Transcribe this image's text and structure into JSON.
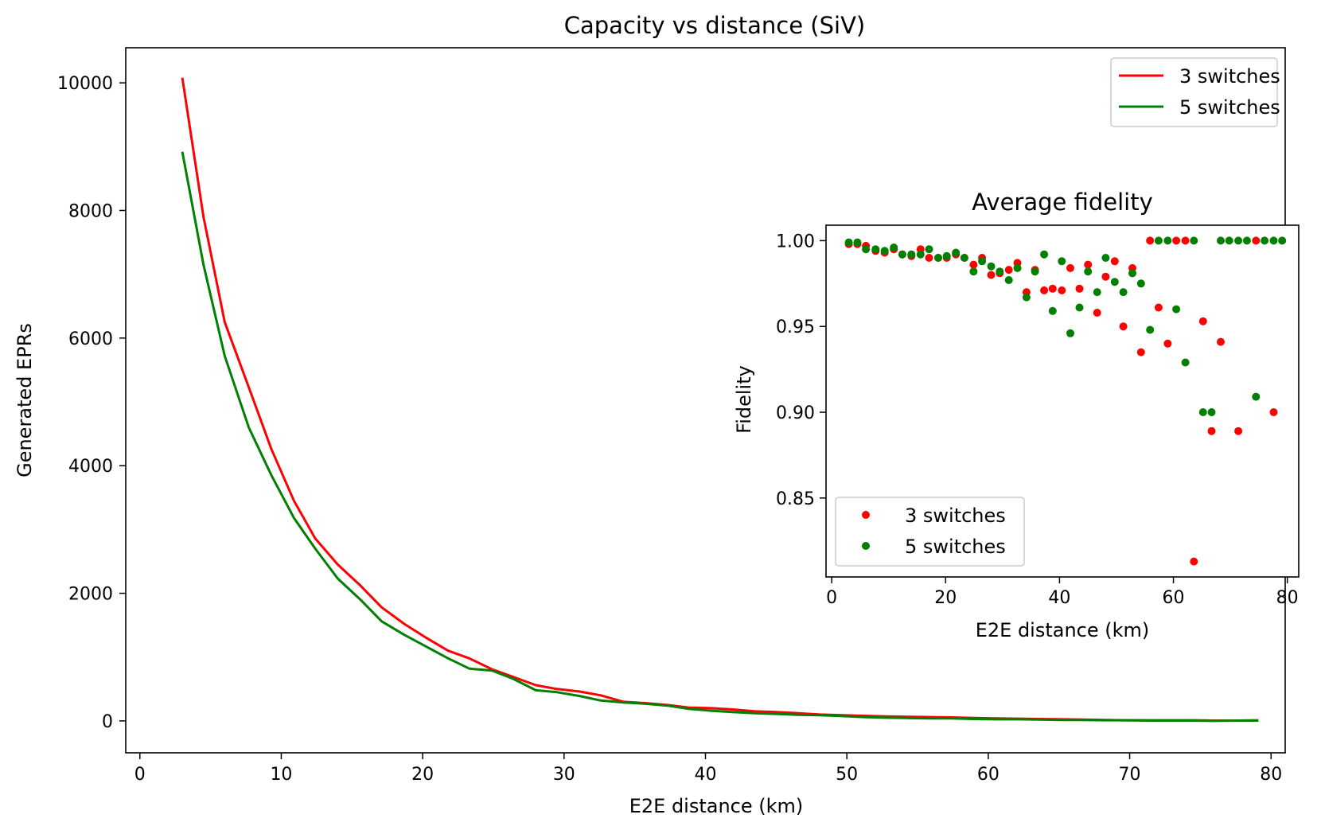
{
  "colors": {
    "series_3": "#ff0000",
    "series_5": "#008000",
    "axes": "#000000"
  },
  "chart_data": [
    {
      "type": "line",
      "title": "Capacity vs distance (SiV)",
      "xlabel": "E2E distance (km)",
      "ylabel": "Generated EPRs",
      "xlim": [
        -1,
        81
      ],
      "ylim": [
        -500,
        10550
      ],
      "xticks": [
        0,
        10,
        20,
        30,
        40,
        50,
        60,
        70,
        80
      ],
      "yticks": [
        0,
        2000,
        4000,
        6000,
        8000,
        10000
      ],
      "legend": "top-right",
      "series": [
        {
          "name": "3 switches",
          "color": "#ff0000",
          "x": [
            3,
            4.5,
            6,
            7.7,
            9.3,
            10.9,
            12.4,
            14,
            15.6,
            17.1,
            18.7,
            20.2,
            21.8,
            23.3,
            24.9,
            26.4,
            28,
            29.5,
            31.1,
            32.6,
            34.2,
            35.7,
            37.3,
            38.8,
            40.4,
            41.9,
            43.5,
            45,
            46.6,
            48.1,
            49.7,
            51.2,
            52.8,
            54.3,
            55.9,
            57.4,
            59,
            60.5,
            62.1,
            63.6,
            65.2,
            66.7,
            68.3,
            69.8,
            71.4,
            72.9,
            74.5,
            76,
            77.6,
            79.1
          ],
          "y": [
            10080,
            7900,
            6250,
            5230,
            4260,
            3450,
            2860,
            2450,
            2120,
            1780,
            1520,
            1310,
            1100,
            980,
            810,
            690,
            560,
            500,
            460,
            400,
            300,
            280,
            250,
            210,
            200,
            180,
            150,
            140,
            120,
            100,
            90,
            80,
            70,
            65,
            60,
            55,
            45,
            40,
            35,
            30,
            25,
            20,
            15,
            10,
            10,
            10,
            10,
            5,
            5,
            10
          ]
        },
        {
          "name": "5 switches",
          "color": "#008000",
          "x": [
            3,
            4.5,
            6,
            7.7,
            9.3,
            10.9,
            12.4,
            14,
            15.6,
            17.1,
            18.7,
            20.2,
            21.8,
            23.3,
            24.9,
            26.4,
            28,
            29.5,
            31.1,
            32.6,
            34.2,
            35.7,
            37.3,
            38.8,
            40.4,
            41.9,
            43.5,
            45,
            46.6,
            48.1,
            49.7,
            51.2,
            52.8,
            54.3,
            55.9,
            57.4,
            59,
            60.5,
            62.1,
            63.6,
            65.2,
            66.7,
            68.3,
            69.8,
            71.4,
            72.9,
            74.5,
            76,
            77.6,
            79.1
          ],
          "y": [
            8920,
            7150,
            5720,
            4600,
            3850,
            3180,
            2700,
            2230,
            1900,
            1560,
            1350,
            1170,
            980,
            820,
            790,
            660,
            480,
            450,
            390,
            320,
            290,
            270,
            240,
            190,
            160,
            140,
            120,
            110,
            95,
            90,
            75,
            60,
            50,
            45,
            40,
            40,
            30,
            25,
            25,
            20,
            15,
            15,
            10,
            10,
            5,
            5,
            5,
            0,
            5,
            5
          ]
        }
      ]
    },
    {
      "type": "scatter",
      "title": "Average fidelity",
      "xlabel": "E2E distance (km)",
      "ylabel": "Fidelity",
      "xlim": [
        -1,
        82
      ],
      "ylim": [
        0.804,
        1.009
      ],
      "xticks": [
        0,
        20,
        40,
        60,
        80
      ],
      "yticks": [
        0.85,
        0.9,
        0.95,
        1.0
      ],
      "ytick_labels": [
        "0.85",
        "0.90",
        "0.95",
        "1.00"
      ],
      "legend": "lower-left",
      "series": [
        {
          "name": "3 switches",
          "color": "#ff0000",
          "x": [
            3,
            4.5,
            6,
            7.7,
            9.3,
            10.9,
            12.4,
            14,
            15.6,
            17.1,
            18.7,
            20.2,
            21.8,
            23.3,
            24.9,
            26.4,
            28,
            29.5,
            31.1,
            32.6,
            34.2,
            35.7,
            37.3,
            38.8,
            40.4,
            41.9,
            43.5,
            45,
            46.6,
            48.1,
            49.7,
            51.2,
            52.8,
            54.3,
            55.9,
            57.4,
            59,
            60.5,
            62.1,
            63.6,
            65.2,
            66.7,
            68.3,
            71.4,
            74.5,
            77.6
          ],
          "y": [
            0.998,
            0.998,
            0.997,
            0.994,
            0.993,
            0.995,
            0.992,
            0.991,
            0.995,
            0.99,
            0.99,
            0.99,
            0.992,
            0.99,
            0.986,
            0.99,
            0.98,
            0.981,
            0.983,
            0.987,
            0.97,
            0.983,
            0.971,
            0.972,
            0.971,
            0.984,
            0.972,
            0.986,
            0.958,
            0.979,
            0.988,
            0.95,
            0.984,
            0.935,
            1.0,
            0.961,
            0.94,
            1.0,
            1.0,
            0.813,
            0.953,
            0.889,
            0.941,
            0.889,
            1.0,
            0.9
          ]
        },
        {
          "name": "5 switches",
          "color": "#008000",
          "x": [
            3,
            4.5,
            6,
            7.7,
            9.3,
            10.9,
            12.4,
            14,
            15.6,
            17.1,
            18.7,
            20.2,
            21.8,
            23.3,
            24.9,
            26.4,
            28,
            29.5,
            31.1,
            32.6,
            34.2,
            35.7,
            37.3,
            38.8,
            40.4,
            41.9,
            43.5,
            45,
            46.6,
            48.1,
            49.7,
            51.2,
            52.8,
            54.3,
            55.9,
            57.4,
            59,
            60.5,
            62.1,
            63.6,
            65.2,
            66.7,
            68.3,
            69.8,
            71.4,
            72.9,
            74.5,
            76,
            77.6,
            79.1
          ],
          "y": [
            0.999,
            0.999,
            0.995,
            0.995,
            0.994,
            0.996,
            0.992,
            0.992,
            0.992,
            0.995,
            0.99,
            0.991,
            0.993,
            0.99,
            0.982,
            0.988,
            0.985,
            0.982,
            0.977,
            0.984,
            0.967,
            0.982,
            0.992,
            0.959,
            0.988,
            0.946,
            0.961,
            0.982,
            0.97,
            0.99,
            0.976,
            0.97,
            0.981,
            0.975,
            0.948,
            1.0,
            1.0,
            0.96,
            0.929,
            1.0,
            0.9,
            0.9,
            1.0,
            1.0,
            1.0,
            1.0,
            0.909,
            1.0,
            1.0,
            1.0
          ]
        }
      ]
    }
  ]
}
